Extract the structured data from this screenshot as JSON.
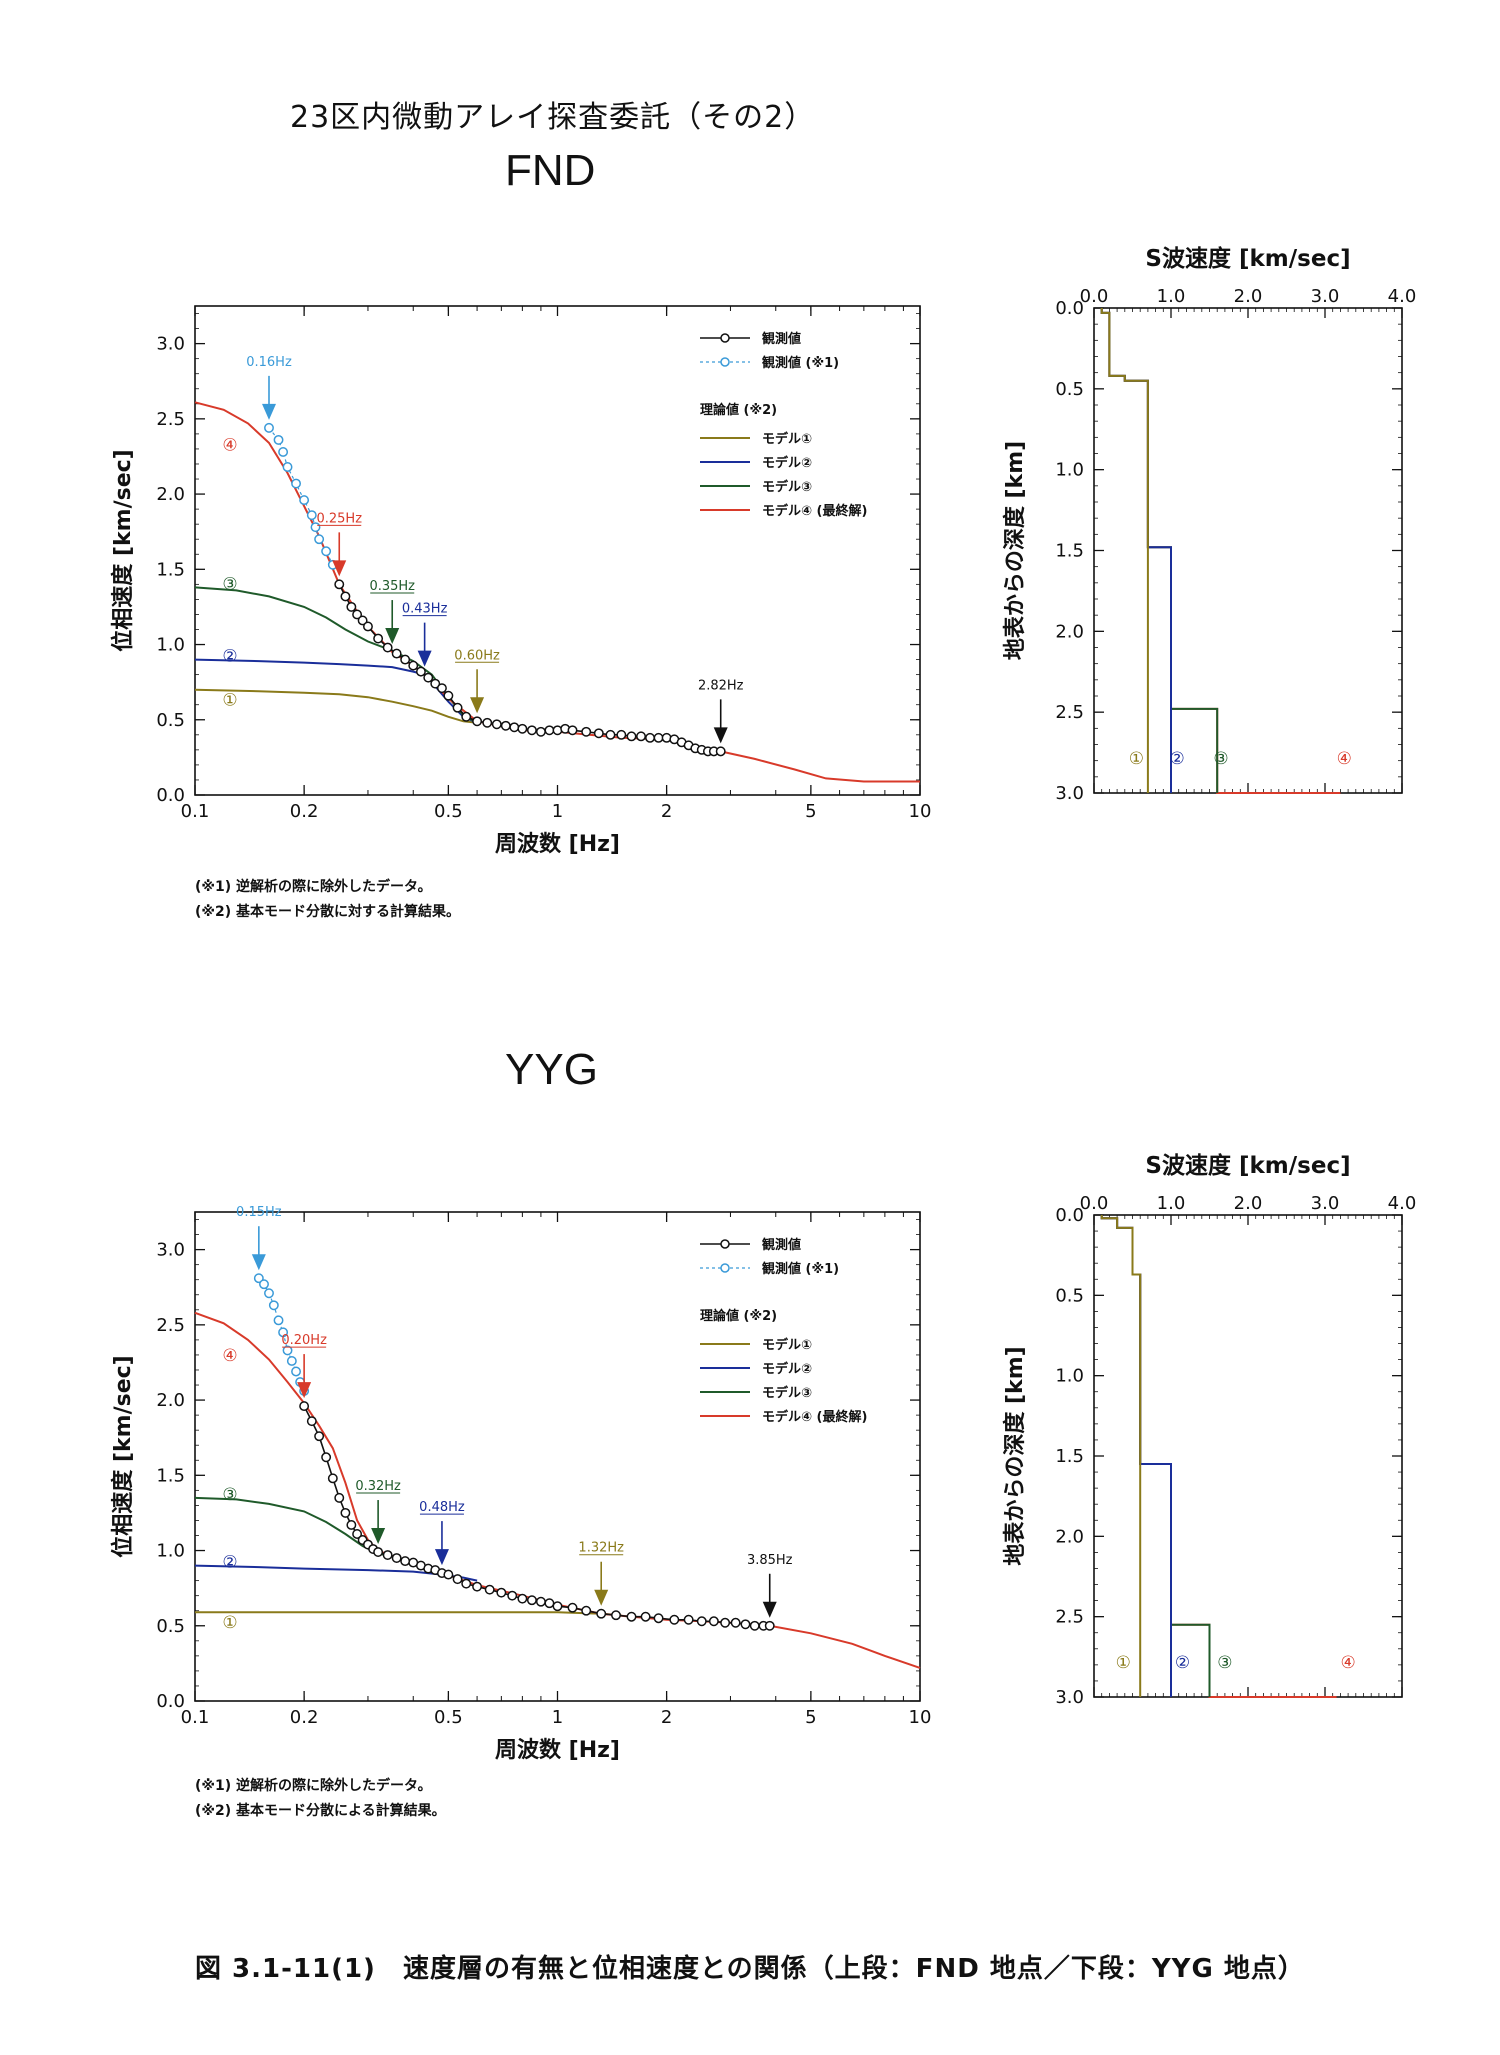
{
  "header": {
    "title": "23区内微動アレイ探査委託（その2）"
  },
  "sections": [
    {
      "id": "fnd",
      "title": "FND",
      "notes": [
        "(※1) 逆解析の際に除外したデータ。",
        "(※2) 基本モード分散に対する計算結果。"
      ]
    },
    {
      "id": "yyg",
      "title": "YYG",
      "notes": [
        "(※1) 逆解析の際に除外したデータ。",
        "(※2) 基本モード分散による計算結果。"
      ]
    }
  ],
  "figure_caption": "図 3.1-11(1)　速度層の有無と位相速度との関係（上段：FND 地点／下段：YYG 地点）",
  "colors": {
    "model1": "#8a7a1a",
    "model2": "#1a2e9a",
    "model3": "#1f5a2a",
    "model4": "#d83a2a",
    "observed": "#111111",
    "excluded": "#3a9ad8"
  },
  "chart_data": [
    {
      "type": "line",
      "section": "FND",
      "xlabel": "周波数 [Hz]",
      "ylabel": "位相速度 [km/sec]",
      "xscale": "log",
      "xlim": [
        0.1,
        10
      ],
      "ylim": [
        0,
        3.25
      ],
      "xticks": [
        0.1,
        0.2,
        0.5,
        1,
        2,
        5,
        10
      ],
      "xtick_labels": [
        "0.1",
        "0.2",
        "0.5",
        "1",
        "2",
        "5",
        "10"
      ],
      "yticks": [
        0,
        0.5,
        1.0,
        1.5,
        2.0,
        2.5,
        3.0
      ],
      "ytick_labels": [
        "0.0",
        "0.5",
        "1.0",
        "1.5",
        "2.0",
        "2.5",
        "3.0"
      ],
      "legend": {
        "observed": "観測値",
        "excluded": "観測値 (※1)",
        "theory_header": "理論値 (※2)",
        "model_labels": [
          "モデル①",
          "モデル②",
          "モデル③",
          "モデル④ (最終解)"
        ]
      },
      "curve_markers": [
        "①",
        "②",
        "③",
        "④"
      ],
      "series": [
        {
          "name": "モデル①",
          "color_key": "model1",
          "x": [
            0.1,
            0.15,
            0.2,
            0.25,
            0.3,
            0.35,
            0.4,
            0.45,
            0.5,
            0.55,
            0.6
          ],
          "y": [
            0.7,
            0.69,
            0.68,
            0.67,
            0.65,
            0.62,
            0.59,
            0.56,
            0.52,
            0.49,
            0.48
          ]
        },
        {
          "name": "モデル②",
          "color_key": "model2",
          "x": [
            0.1,
            0.15,
            0.2,
            0.25,
            0.3,
            0.35,
            0.4,
            0.43,
            0.45,
            0.5,
            0.55,
            0.6
          ],
          "y": [
            0.9,
            0.89,
            0.88,
            0.87,
            0.86,
            0.85,
            0.82,
            0.8,
            0.75,
            0.62,
            0.52,
            0.48
          ]
        },
        {
          "name": "モデル③",
          "color_key": "model3",
          "x": [
            0.1,
            0.13,
            0.16,
            0.2,
            0.23,
            0.26,
            0.3,
            0.35,
            0.4,
            0.45,
            0.5,
            0.55,
            0.6
          ],
          "y": [
            1.38,
            1.36,
            1.32,
            1.25,
            1.18,
            1.1,
            1.02,
            0.96,
            0.89,
            0.8,
            0.65,
            0.53,
            0.48
          ]
        },
        {
          "name": "モデル④ (最終解)",
          "color_key": "model4",
          "x": [
            0.1,
            0.12,
            0.14,
            0.16,
            0.18,
            0.2,
            0.22,
            0.25,
            0.28,
            0.3,
            0.35,
            0.4,
            0.45,
            0.5,
            0.6,
            0.8,
            1.0,
            1.5,
            2.0,
            2.5,
            2.82,
            3.5,
            4.5,
            5.5,
            7,
            10
          ],
          "y": [
            2.61,
            2.56,
            2.47,
            2.34,
            2.14,
            1.92,
            1.72,
            1.4,
            1.22,
            1.12,
            0.95,
            0.86,
            0.76,
            0.64,
            0.49,
            0.43,
            0.42,
            0.38,
            0.37,
            0.31,
            0.29,
            0.24,
            0.17,
            0.11,
            0.09,
            0.09
          ]
        }
      ],
      "excluded_points": {
        "x": [
          0.16,
          0.17,
          0.175,
          0.18,
          0.19,
          0.2,
          0.21,
          0.215,
          0.22,
          0.23,
          0.24
        ],
        "y": [
          2.44,
          2.36,
          2.28,
          2.18,
          2.07,
          1.96,
          1.86,
          1.78,
          1.7,
          1.62,
          1.53
        ]
      },
      "observed_points": {
        "x": [
          0.25,
          0.26,
          0.27,
          0.28,
          0.29,
          0.3,
          0.32,
          0.34,
          0.36,
          0.38,
          0.4,
          0.42,
          0.44,
          0.46,
          0.48,
          0.5,
          0.53,
          0.56,
          0.6,
          0.64,
          0.68,
          0.72,
          0.76,
          0.8,
          0.85,
          0.9,
          0.95,
          1.0,
          1.05,
          1.1,
          1.2,
          1.3,
          1.4,
          1.5,
          1.6,
          1.7,
          1.8,
          1.9,
          2.0,
          2.1,
          2.2,
          2.3,
          2.4,
          2.5,
          2.6,
          2.7,
          2.82
        ],
        "y": [
          1.4,
          1.32,
          1.25,
          1.2,
          1.16,
          1.12,
          1.04,
          0.98,
          0.94,
          0.9,
          0.86,
          0.82,
          0.78,
          0.74,
          0.71,
          0.66,
          0.58,
          0.52,
          0.49,
          0.48,
          0.47,
          0.46,
          0.45,
          0.44,
          0.43,
          0.42,
          0.43,
          0.43,
          0.44,
          0.43,
          0.42,
          0.41,
          0.4,
          0.4,
          0.39,
          0.39,
          0.38,
          0.38,
          0.38,
          0.37,
          0.35,
          0.33,
          0.31,
          0.3,
          0.29,
          0.29,
          0.29
        ]
      },
      "frequency_markers": [
        {
          "label": "0.16Hz",
          "x": 0.16,
          "y": 2.44,
          "color_key": "excluded",
          "underline": false
        },
        {
          "label": "0.25Hz",
          "x": 0.25,
          "y": 1.4,
          "color_key": "model4",
          "underline": true
        },
        {
          "label": "0.35Hz",
          "x": 0.35,
          "y": 0.95,
          "color_key": "model3",
          "underline": true
        },
        {
          "label": "0.43Hz",
          "x": 0.43,
          "y": 0.8,
          "color_key": "model2",
          "underline": true
        },
        {
          "label": "0.60Hz",
          "x": 0.6,
          "y": 0.49,
          "color_key": "model1",
          "underline": true
        },
        {
          "label": "2.82Hz",
          "x": 2.82,
          "y": 0.29,
          "color_key": "observed",
          "underline": false
        }
      ]
    },
    {
      "type": "step",
      "section": "FND",
      "title": "S波速度 [km/sec]",
      "ylabel": "地表からの深度 [km]",
      "xlim": [
        0,
        4
      ],
      "ylim": [
        0,
        3
      ],
      "xticks": [
        0,
        1,
        2,
        3,
        4
      ],
      "xtick_labels": [
        "0.0",
        "1.0",
        "2.0",
        "3.0",
        "4.0"
      ],
      "yticks": [
        0,
        0.5,
        1.0,
        1.5,
        2.0,
        2.5,
        3.0
      ],
      "ytick_labels": [
        "0.0",
        "0.5",
        "1.0",
        "1.5",
        "2.0",
        "2.5",
        "3.0"
      ],
      "model_labels": [
        "①",
        "②",
        "③",
        "④"
      ],
      "label_vs": [
        0.55,
        1.08,
        1.65,
        3.25
      ],
      "series": [
        {
          "name": "モデル①",
          "color_key": "model1",
          "vs": [
            0.1,
            0.2,
            0.4,
            0.7
          ],
          "top": [
            0,
            0.03,
            0.42,
            0.45
          ],
          "bottom": 3.0
        },
        {
          "name": "モデル②",
          "color_key": "model2",
          "vs": [
            0.1,
            0.2,
            0.4,
            0.7,
            1.0
          ],
          "top": [
            0,
            0.03,
            0.42,
            0.45,
            1.48
          ],
          "bottom": 3.0
        },
        {
          "name": "モデル③",
          "color_key": "model3",
          "vs": [
            0.1,
            0.2,
            0.4,
            0.7,
            1.0,
            1.6
          ],
          "top": [
            0,
            0.03,
            0.42,
            0.45,
            1.48,
            2.48
          ],
          "bottom": 3.0
        },
        {
          "name": "モデル④ (最終解)",
          "color_key": "model4",
          "vs": [
            0.1,
            0.2,
            0.4,
            0.7,
            1.0,
            1.6,
            3.2
          ],
          "top": [
            0,
            0.03,
            0.42,
            0.45,
            1.48,
            2.48,
            3.0
          ],
          "bottom": 3.0
        }
      ]
    },
    {
      "type": "line",
      "section": "YYG",
      "xlabel": "周波数 [Hz]",
      "ylabel": "位相速度 [km/sec]",
      "xscale": "log",
      "xlim": [
        0.1,
        10
      ],
      "ylim": [
        0,
        3.25
      ],
      "xticks": [
        0.1,
        0.2,
        0.5,
        1,
        2,
        5,
        10
      ],
      "xtick_labels": [
        "0.1",
        "0.2",
        "0.5",
        "1",
        "2",
        "5",
        "10"
      ],
      "yticks": [
        0,
        0.5,
        1.0,
        1.5,
        2.0,
        2.5,
        3.0
      ],
      "ytick_labels": [
        "0.0",
        "0.5",
        "1.0",
        "1.5",
        "2.0",
        "2.5",
        "3.0"
      ],
      "legend": {
        "observed": "観測値",
        "excluded": "観測値 (※1)",
        "theory_header": "理論値 (※2)",
        "model_labels": [
          "モデル①",
          "モデル②",
          "モデル③",
          "モデル④ (最終解)"
        ]
      },
      "curve_markers": [
        "①",
        "②",
        "③",
        "④"
      ],
      "series": [
        {
          "name": "モデル①",
          "color_key": "model1",
          "x": [
            0.1,
            0.2,
            0.4,
            0.7,
            1.0,
            1.32,
            1.5
          ],
          "y": [
            0.59,
            0.59,
            0.59,
            0.59,
            0.59,
            0.58,
            0.57
          ]
        },
        {
          "name": "モデル②",
          "color_key": "model2",
          "x": [
            0.1,
            0.15,
            0.2,
            0.3,
            0.4,
            0.48,
            0.55,
            0.6
          ],
          "y": [
            0.9,
            0.89,
            0.88,
            0.87,
            0.86,
            0.84,
            0.82,
            0.8
          ]
        },
        {
          "name": "モデル③",
          "color_key": "model3",
          "x": [
            0.1,
            0.13,
            0.16,
            0.2,
            0.23,
            0.26,
            0.29,
            0.32,
            0.35
          ],
          "y": [
            1.35,
            1.34,
            1.31,
            1.26,
            1.19,
            1.11,
            1.03,
            0.98,
            0.96
          ]
        },
        {
          "name": "モデル④ (最終解)",
          "color_key": "model4",
          "x": [
            0.1,
            0.12,
            0.14,
            0.16,
            0.18,
            0.2,
            0.22,
            0.24,
            0.26,
            0.28,
            0.3,
            0.32,
            0.36,
            0.4,
            0.48,
            0.6,
            0.8,
            1.0,
            1.32,
            1.6,
            2.0,
            2.5,
            3.0,
            3.85,
            5,
            6.5,
            8,
            10
          ],
          "y": [
            2.58,
            2.51,
            2.4,
            2.27,
            2.12,
            1.98,
            1.83,
            1.68,
            1.45,
            1.2,
            1.07,
            1.0,
            0.95,
            0.91,
            0.85,
            0.77,
            0.7,
            0.64,
            0.58,
            0.56,
            0.54,
            0.53,
            0.52,
            0.5,
            0.45,
            0.38,
            0.3,
            0.22
          ]
        }
      ],
      "excluded_points": {
        "x": [
          0.15,
          0.155,
          0.16,
          0.165,
          0.17,
          0.175,
          0.18,
          0.185,
          0.19,
          0.195,
          0.2
        ],
        "y": [
          2.81,
          2.77,
          2.71,
          2.63,
          2.53,
          2.45,
          2.33,
          2.26,
          2.19,
          2.12,
          2.06
        ]
      },
      "observed_points": {
        "x": [
          0.2,
          0.21,
          0.22,
          0.23,
          0.24,
          0.25,
          0.26,
          0.27,
          0.28,
          0.29,
          0.3,
          0.31,
          0.32,
          0.34,
          0.36,
          0.38,
          0.4,
          0.42,
          0.44,
          0.46,
          0.48,
          0.5,
          0.53,
          0.56,
          0.6,
          0.65,
          0.7,
          0.75,
          0.8,
          0.85,
          0.9,
          0.95,
          1.0,
          1.1,
          1.2,
          1.32,
          1.45,
          1.6,
          1.75,
          1.9,
          2.1,
          2.3,
          2.5,
          2.7,
          2.9,
          3.1,
          3.3,
          3.5,
          3.7,
          3.85
        ],
        "y": [
          1.96,
          1.86,
          1.76,
          1.62,
          1.48,
          1.35,
          1.25,
          1.17,
          1.11,
          1.07,
          1.04,
          1.01,
          0.99,
          0.97,
          0.95,
          0.93,
          0.92,
          0.9,
          0.88,
          0.87,
          0.85,
          0.84,
          0.81,
          0.78,
          0.76,
          0.74,
          0.72,
          0.7,
          0.68,
          0.67,
          0.66,
          0.65,
          0.63,
          0.62,
          0.6,
          0.58,
          0.57,
          0.56,
          0.56,
          0.55,
          0.54,
          0.54,
          0.53,
          0.53,
          0.52,
          0.52,
          0.51,
          0.5,
          0.5,
          0.5
        ]
      },
      "frequency_markers": [
        {
          "label": "0.15Hz",
          "x": 0.15,
          "y": 2.81,
          "color_key": "excluded",
          "underline": false
        },
        {
          "label": "0.20Hz",
          "x": 0.2,
          "y": 1.96,
          "color_key": "model4",
          "underline": true
        },
        {
          "label": "0.32Hz",
          "x": 0.32,
          "y": 0.99,
          "color_key": "model3",
          "underline": true
        },
        {
          "label": "0.48Hz",
          "x": 0.48,
          "y": 0.85,
          "color_key": "model2",
          "underline": true
        },
        {
          "label": "1.32Hz",
          "x": 1.32,
          "y": 0.58,
          "color_key": "model1",
          "underline": true
        },
        {
          "label": "3.85Hz",
          "x": 3.85,
          "y": 0.5,
          "color_key": "observed",
          "underline": false
        }
      ]
    },
    {
      "type": "step",
      "section": "YYG",
      "title": "S波速度 [km/sec]",
      "ylabel": "地表からの深度 [km]",
      "xlim": [
        0,
        4
      ],
      "ylim": [
        0,
        3
      ],
      "xticks": [
        0,
        1,
        2,
        3,
        4
      ],
      "xtick_labels": [
        "0.0",
        "1.0",
        "2.0",
        "3.0",
        "4.0"
      ],
      "yticks": [
        0,
        0.5,
        1.0,
        1.5,
        2.0,
        2.5,
        3.0
      ],
      "ytick_labels": [
        "0.0",
        "0.5",
        "1.0",
        "1.5",
        "2.0",
        "2.5",
        "3.0"
      ],
      "model_labels": [
        "①",
        "②",
        "③",
        "④"
      ],
      "label_vs": [
        0.38,
        1.15,
        1.7,
        3.3
      ],
      "series": [
        {
          "name": "モデル①",
          "color_key": "model1",
          "vs": [
            0.1,
            0.3,
            0.5,
            0.6
          ],
          "top": [
            0,
            0.02,
            0.08,
            0.37
          ],
          "bottom": 3.0
        },
        {
          "name": "モデル②",
          "color_key": "model2",
          "vs": [
            0.1,
            0.3,
            0.5,
            0.6,
            1.0
          ],
          "top": [
            0,
            0.02,
            0.08,
            0.37,
            1.55
          ],
          "bottom": 3.0
        },
        {
          "name": "モデル③",
          "color_key": "model3",
          "vs": [
            0.1,
            0.3,
            0.5,
            0.6,
            1.0,
            1.5
          ],
          "top": [
            0,
            0.02,
            0.08,
            0.37,
            1.55,
            2.55
          ],
          "bottom": 3.0
        },
        {
          "name": "モデル④ (最終解)",
          "color_key": "model4",
          "vs": [
            0.1,
            0.3,
            0.5,
            0.6,
            1.0,
            1.5,
            3.15
          ],
          "top": [
            0,
            0.02,
            0.08,
            0.37,
            1.55,
            2.55,
            3.0
          ],
          "bottom": 3.0
        }
      ]
    }
  ]
}
